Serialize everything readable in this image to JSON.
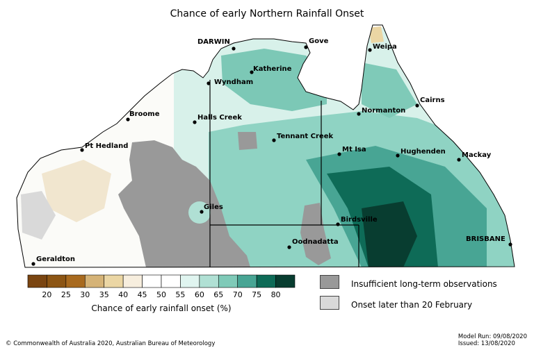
{
  "title": "Chance of early Northern Rainfall Onset",
  "colors": {
    "insufficient": "#999999",
    "later_onset": "#d9d9d9",
    "ocean": "#ffffff",
    "boundary": "#000000"
  },
  "colorbar": {
    "label": "Chance of early rainfall onset (%)",
    "ticks": [
      "20",
      "25",
      "30",
      "35",
      "40",
      "45",
      "50",
      "55",
      "60",
      "65",
      "70",
      "75",
      "80"
    ],
    "bins": [
      {
        "color": "#7a4511"
      },
      {
        "color": "#8c5514"
      },
      {
        "color": "#a86a1f"
      },
      {
        "color": "#d5b377"
      },
      {
        "color": "#ebd6a4"
      },
      {
        "color": "#f7eede"
      },
      {
        "color": "#ffffff"
      },
      {
        "color": "#ffffff"
      },
      {
        "color": "#e0f5f0"
      },
      {
        "color": "#b0e0d4"
      },
      {
        "color": "#7fcab8"
      },
      {
        "color": "#48a594"
      },
      {
        "color": "#0e6b57"
      },
      {
        "color": "#083d30"
      }
    ]
  },
  "legend": {
    "insufficient": "Insufficient long-term observations",
    "later": "Onset later than 20 February"
  },
  "cities": [
    {
      "name": "DARWIN"
    },
    {
      "name": "Gove"
    },
    {
      "name": "Weipa"
    },
    {
      "name": "Katherine"
    },
    {
      "name": "Wyndham"
    },
    {
      "name": "Cairns"
    },
    {
      "name": "Normanton"
    },
    {
      "name": "Broome"
    },
    {
      "name": "Halls Creek"
    },
    {
      "name": "Tennant Creek"
    },
    {
      "name": "Pt Hedland"
    },
    {
      "name": "Mt Isa"
    },
    {
      "name": "Hughenden"
    },
    {
      "name": "Mackay"
    },
    {
      "name": "Giles"
    },
    {
      "name": "Birdsville"
    },
    {
      "name": "Oodnadatta"
    },
    {
      "name": "BRISBANE"
    },
    {
      "name": "Geraldton"
    }
  ],
  "footer": {
    "copyright": "© Commonwealth of Australia 2020, Australian Bureau of Meteorology",
    "model_run": "Model Run: 09/08/2020",
    "issued": "Issued: 13/08/2020"
  }
}
